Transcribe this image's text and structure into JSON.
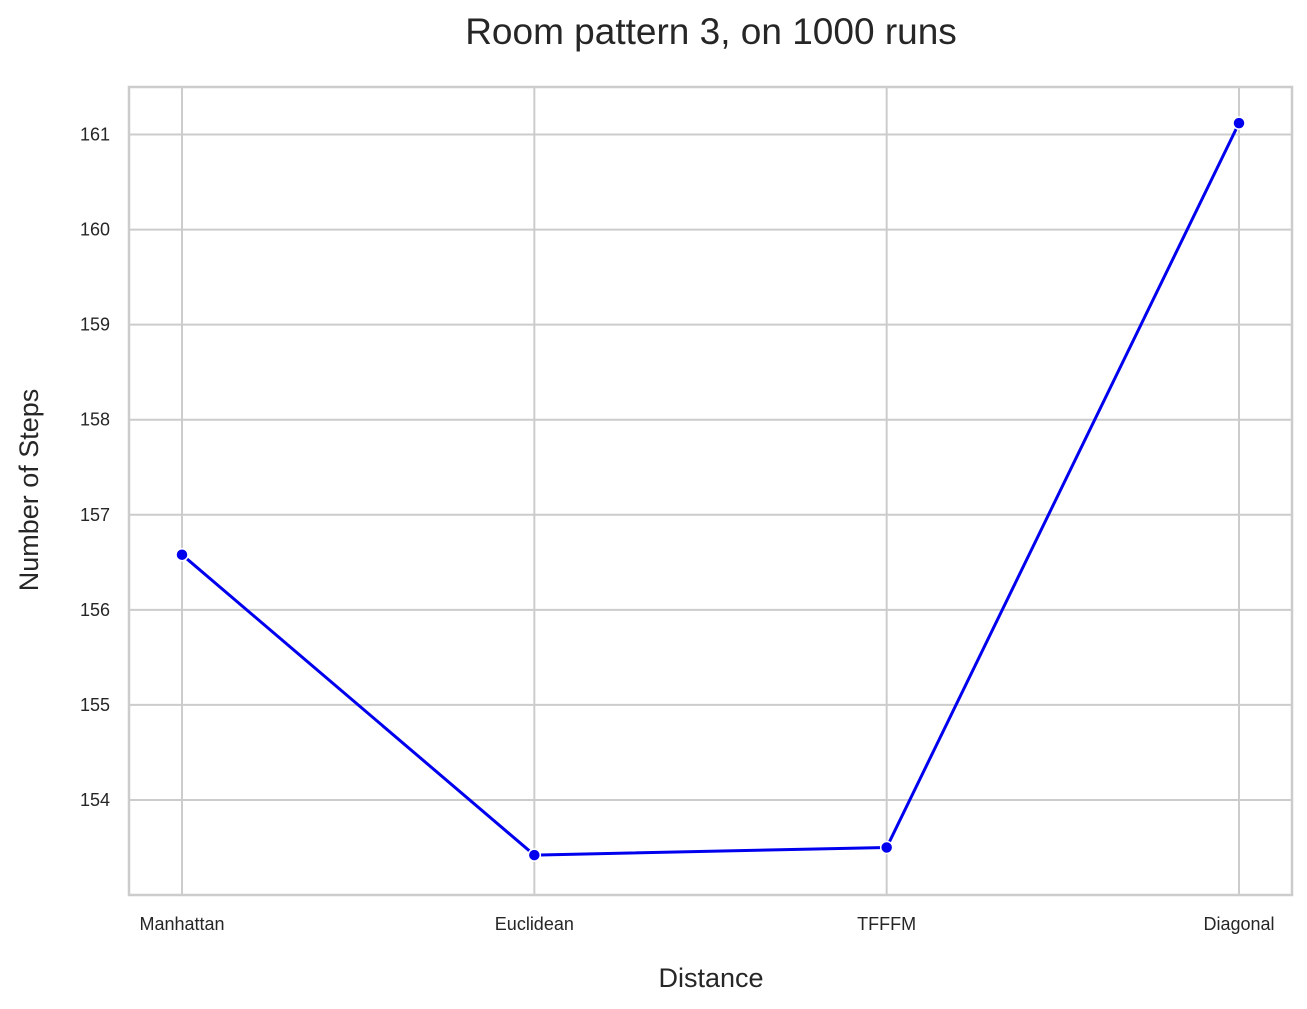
{
  "chart_data": {
    "type": "line",
    "title": "Room pattern 3, on 1000 runs",
    "xlabel": "Distance",
    "ylabel": "Number of Steps",
    "categories": [
      "Manhattan",
      "Euclidean",
      "TFFFM",
      "Diagonal"
    ],
    "series": [
      {
        "values": [
          156.58,
          153.42,
          153.5,
          161.12
        ]
      }
    ],
    "ylim": [
      153.0,
      161.5
    ],
    "yticks": [
      154,
      155,
      156,
      157,
      158,
      159,
      160,
      161
    ],
    "grid": true,
    "line_color": "#0000ee"
  }
}
